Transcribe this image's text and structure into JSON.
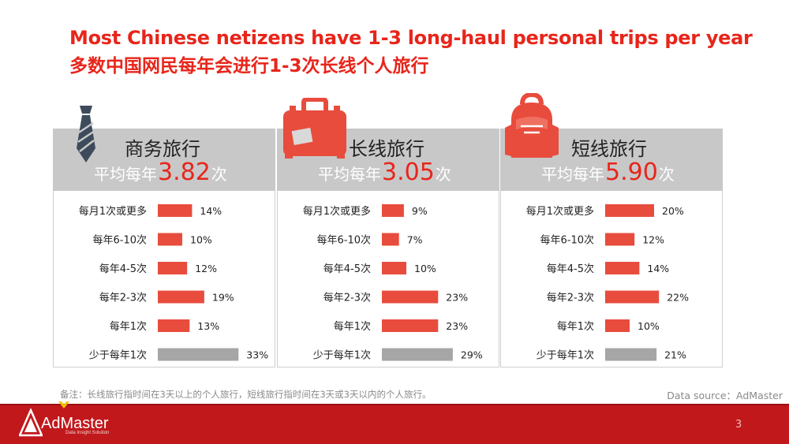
{
  "header": {
    "title_en": "Most Chinese netizens have 1-3 long-haul personal trips per year",
    "title_cn": "多数中国网民每年会进行1-3次长线个人旅行"
  },
  "colors": {
    "accent": "#e8251b",
    "bar_red": "#e84c3d",
    "bar_gray": "#a6a6a6",
    "header_gray": "#c8c8c8",
    "footer": "#c1181b"
  },
  "panels": [
    {
      "icon": "necktie-icon",
      "category": "商务旅行",
      "avg_prefix": "平均每年",
      "avg_value": "3.82",
      "avg_suffix": "次"
    },
    {
      "icon": "suitcase-icon",
      "category": "长线旅行",
      "avg_prefix": "平均每年",
      "avg_value": "3.05",
      "avg_suffix": "次"
    },
    {
      "icon": "backpack-icon",
      "category": "短线旅行",
      "avg_prefix": "平均每年",
      "avg_value": "5.90",
      "avg_suffix": "次"
    }
  ],
  "chart_data": [
    {
      "type": "bar",
      "orientation": "horizontal",
      "title": "商务旅行",
      "categories": [
        "每月1次或更多",
        "每年6-10次",
        "每年4-5次",
        "每年2-3次",
        "每年1次",
        "少于每年1次"
      ],
      "values": [
        14,
        10,
        12,
        19,
        13,
        33
      ],
      "labels": [
        "14%",
        "10%",
        "12%",
        "19%",
        "13%",
        "33%"
      ],
      "unit": "%"
    },
    {
      "type": "bar",
      "orientation": "horizontal",
      "title": "长线旅行",
      "categories": [
        "每月1次或更多",
        "每年6-10次",
        "每年4-5次",
        "每年2-3次",
        "每年1次",
        "少于每年1次"
      ],
      "values": [
        9,
        7,
        10,
        23,
        23,
        29
      ],
      "labels": [
        "9%",
        "7%",
        "10%",
        "23%",
        "23%",
        "29%"
      ],
      "unit": "%"
    },
    {
      "type": "bar",
      "orientation": "horizontal",
      "title": "短线旅行",
      "categories": [
        "每月1次或更多",
        "每年6-10次",
        "每年4-5次",
        "每年2-3次",
        "每年1次",
        "少于每年1次"
      ],
      "values": [
        20,
        12,
        14,
        22,
        10,
        21
      ],
      "labels": [
        "20%",
        "12%",
        "14%",
        "22%",
        "10%",
        "21%"
      ],
      "unit": "%"
    }
  ],
  "footer": {
    "note": "备注：长线旅行指时间在3天以上的个人旅行，短线旅行指时间在3天或3天以内的个人旅行。",
    "source": "Data source：AdMaster",
    "logo_text": "AdMaster",
    "logo_sub": "Data Insight Solution",
    "page_number": "3"
  }
}
